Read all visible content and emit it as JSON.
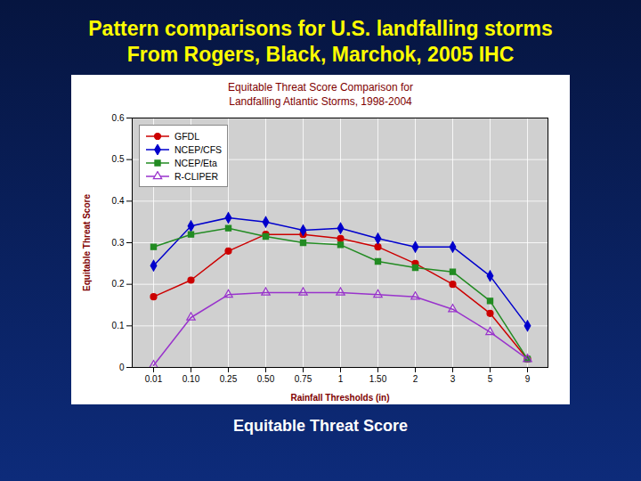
{
  "title": "Pattern comparisons for U.S. landfalling storms",
  "subtitle": "From Rogers, Black, Marchok, 2005 IHC",
  "caption": "Equitable Threat Score",
  "chart_data": {
    "type": "line",
    "title": "Equitable Threat Score Comparison for\nLandfalling Atlantic Storms, 1998-2004",
    "xlabel": "Rainfall Thresholds (in)",
    "ylabel": "Equitable Threat Score",
    "categories": [
      "0.01",
      "0.10",
      "0.25",
      "0.50",
      "0.75",
      "1",
      "1.50",
      "2",
      "3",
      "5",
      "9"
    ],
    "ylim": [
      0,
      0.6
    ],
    "yticks": [
      0,
      0.1,
      0.2,
      0.3,
      0.4,
      0.5,
      0.6
    ],
    "grid": true,
    "legend": "upper left",
    "series": [
      {
        "name": "GFDL",
        "color": "#cc0000",
        "marker": "circle",
        "line_style": "solid",
        "values": [
          0.17,
          0.21,
          0.28,
          0.32,
          0.32,
          0.31,
          0.29,
          0.25,
          0.2,
          0.13,
          0.02
        ]
      },
      {
        "name": "NCEP/CFS",
        "color": "#0000cc",
        "marker": "diamond",
        "line_style": "solid",
        "values": [
          0.245,
          0.34,
          0.36,
          0.35,
          0.33,
          0.335,
          0.31,
          0.29,
          0.29,
          0.22,
          0.1
        ]
      },
      {
        "name": "NCEP/Eta",
        "color": "#228b22",
        "marker": "square",
        "line_style": "solid",
        "values": [
          0.29,
          0.32,
          0.335,
          0.315,
          0.3,
          0.295,
          0.255,
          0.24,
          0.23,
          0.16,
          0.02
        ]
      },
      {
        "name": "R-CLIPER",
        "color": "#9933cc",
        "marker": "triangle-open",
        "line_style": "solid",
        "values": [
          0.005,
          0.12,
          0.175,
          0.18,
          0.18,
          0.18,
          0.175,
          0.17,
          0.14,
          0.085,
          0.02
        ]
      }
    ]
  }
}
